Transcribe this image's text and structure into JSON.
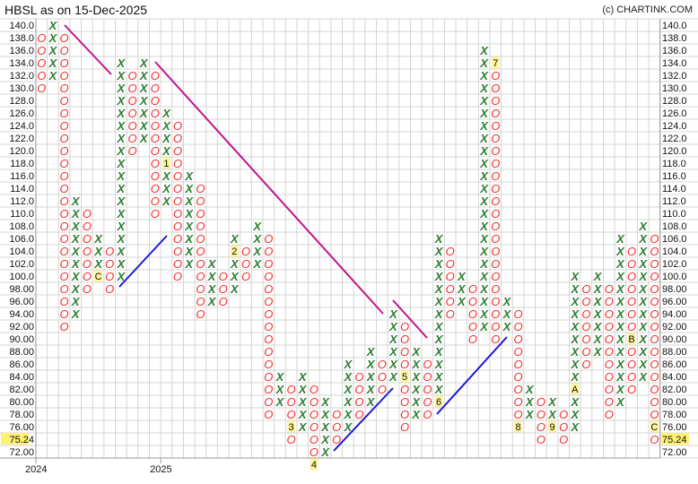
{
  "header": {
    "title": "HBSL as on 15-Dec-2025",
    "credit": "(c) CHARTINK.COM"
  },
  "chart_data": {
    "type": "point-and-figure",
    "title": "HBSL as on 15-Dec-2025",
    "box_size": 2,
    "ylim": [
      72,
      140
    ],
    "grid": true,
    "colors": {
      "x": "#2e7d32",
      "o": "#f03030",
      "marker_bg": "#fff59d",
      "downtrend": "#c0148c",
      "uptrend": "#1a1ad6",
      "grid": "#d4d4d4"
    },
    "last_price": "75.24",
    "price_labels": [
      "140.0",
      "138.0",
      "136.0",
      "134.0",
      "132.0",
      "130.0",
      "128.0",
      "126.0",
      "124.0",
      "122.0",
      "120.0",
      "118.0",
      "116.0",
      "114.0",
      "112.0",
      "110.0",
      "108.0",
      "106.0",
      "104.0",
      "102.0",
      "100.0",
      "98.00",
      "96.00",
      "94.00",
      "92.00",
      "90.00",
      "88.00",
      "86.00",
      "84.00",
      "82.00",
      "80.00",
      "78.00",
      "76.00",
      "75.24",
      "72.00"
    ],
    "x_labels": [
      {
        "label": "2024",
        "column": 0
      },
      {
        "label": "2025",
        "column": 11
      }
    ],
    "columns": [
      {
        "t": "O",
        "hi": 138,
        "lo": 130
      },
      {
        "t": "X",
        "hi": 140,
        "lo": 132
      },
      {
        "t": "O",
        "hi": 138,
        "lo": 92
      },
      {
        "t": "X",
        "hi": 112,
        "lo": 94
      },
      {
        "t": "O",
        "hi": 110,
        "lo": 98
      },
      {
        "t": "X",
        "hi": 106,
        "lo": 100,
        "m": {
          "100": "C"
        }
      },
      {
        "t": "O",
        "hi": 104,
        "lo": 98
      },
      {
        "t": "X",
        "hi": 134,
        "lo": 100
      },
      {
        "t": "O",
        "hi": 132,
        "lo": 120
      },
      {
        "t": "X",
        "hi": 134,
        "lo": 122
      },
      {
        "t": "O",
        "hi": 132,
        "lo": 110
      },
      {
        "t": "X",
        "hi": 126,
        "lo": 112,
        "m": {
          "118": "1"
        }
      },
      {
        "t": "O",
        "hi": 124,
        "lo": 100
      },
      {
        "t": "X",
        "hi": 116,
        "lo": 102
      },
      {
        "t": "O",
        "hi": 114,
        "lo": 94
      },
      {
        "t": "X",
        "hi": 102,
        "lo": 96
      },
      {
        "t": "O",
        "hi": 100,
        "lo": 96
      },
      {
        "t": "X",
        "hi": 106,
        "lo": 98,
        "m": {
          "104": "2"
        }
      },
      {
        "t": "O",
        "hi": 104,
        "lo": 100
      },
      {
        "t": "X",
        "hi": 108,
        "lo": 102
      },
      {
        "t": "O",
        "hi": 106,
        "lo": 78
      },
      {
        "t": "X",
        "hi": 84,
        "lo": 80
      },
      {
        "t": "O",
        "hi": 82,
        "lo": 74,
        "m": {
          "76": "3"
        }
      },
      {
        "t": "X",
        "hi": 84,
        "lo": 76
      },
      {
        "t": "O",
        "hi": 82,
        "lo": 70,
        "m": {
          "70": "4"
        }
      },
      {
        "t": "X",
        "hi": 80,
        "lo": 72
      },
      {
        "t": "O",
        "hi": 78,
        "lo": 74
      },
      {
        "t": "X",
        "hi": 86,
        "lo": 76
      },
      {
        "t": "O",
        "hi": 84,
        "lo": 78
      },
      {
        "t": "X",
        "hi": 88,
        "lo": 80
      },
      {
        "t": "O",
        "hi": 86,
        "lo": 82
      },
      {
        "t": "X",
        "hi": 94,
        "lo": 84
      },
      {
        "t": "O",
        "hi": 92,
        "lo": 76,
        "m": {
          "84": "5"
        }
      },
      {
        "t": "X",
        "hi": 88,
        "lo": 78
      },
      {
        "t": "O",
        "hi": 86,
        "lo": 78
      },
      {
        "t": "X",
        "hi": 106,
        "lo": 80,
        "m": {
          "80": "6"
        }
      },
      {
        "t": "O",
        "hi": 104,
        "lo": 94
      },
      {
        "t": "X",
        "hi": 100,
        "lo": 96
      },
      {
        "t": "O",
        "hi": 98,
        "lo": 90
      },
      {
        "t": "X",
        "hi": 136,
        "lo": 92
      },
      {
        "t": "O",
        "hi": 134,
        "lo": 90,
        "m": {
          "134": "7"
        }
      },
      {
        "t": "X",
        "hi": 96,
        "lo": 92
      },
      {
        "t": "O",
        "hi": 94,
        "lo": 76,
        "m": {
          "76": "8"
        }
      },
      {
        "t": "X",
        "hi": 82,
        "lo": 78
      },
      {
        "t": "O",
        "hi": 80,
        "lo": 74
      },
      {
        "t": "X",
        "hi": 80,
        "lo": 76,
        "m": {
          "76": "9"
        }
      },
      {
        "t": "O",
        "hi": 78,
        "lo": 74
      },
      {
        "t": "X",
        "hi": 100,
        "lo": 76,
        "m": {
          "82": "A"
        }
      },
      {
        "t": "O",
        "hi": 98,
        "lo": 86
      },
      {
        "t": "X",
        "hi": 100,
        "lo": 88
      },
      {
        "t": "O",
        "hi": 98,
        "lo": 78
      },
      {
        "t": "X",
        "hi": 106,
        "lo": 80
      },
      {
        "t": "O",
        "hi": 104,
        "lo": 82,
        "m": {
          "90": "B"
        }
      },
      {
        "t": "X",
        "hi": 108,
        "lo": 84
      },
      {
        "t": "O",
        "hi": 106,
        "lo": 74,
        "m": {
          "76": "C"
        }
      }
    ]
  }
}
